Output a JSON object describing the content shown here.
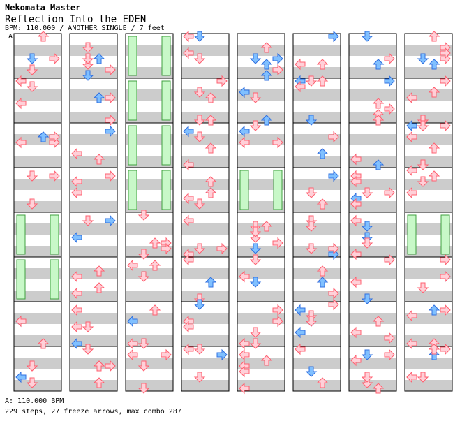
{
  "header": {
    "title": "Nekomata Master",
    "song": "Reflection Into the EDEN",
    "meta": "BPM: 110.000 / ANOTHER SINGLE / 7 feet",
    "marker": "A"
  },
  "footer": {
    "bpm_line": "A: 110.000 BPM",
    "stats_line": "229 steps, 27 freeze arrows, max combo 287"
  },
  "colors": {
    "stripe_gray": "#cccccc",
    "stripe_white": "#ffffff",
    "border": "#000000",
    "arrow_red_fill": "#ffd0d8",
    "arrow_red_stroke": "#ff6070",
    "arrow_blue_fill": "#80c0ff",
    "arrow_blue_stroke": "#3070e0",
    "freeze_fill": "#c8f8c8",
    "freeze_stroke": "#40a040"
  },
  "chart_data": {
    "type": "stepchart",
    "columns": 8,
    "measures_per_column": 8,
    "lanes": [
      "left",
      "down",
      "up",
      "right"
    ],
    "notes": [
      {
        "c": 0,
        "m": 0,
        "b": []
      },
      {
        "c": 1,
        "m": 0,
        "r": [
          [
            0,
            "L"
          ],
          [
            0,
            "R"
          ],
          [
            2,
            "R"
          ],
          [
            4,
            "D"
          ],
          [
            6,
            "L"
          ],
          [
            6,
            "R"
          ]
        ]
      },
      {
        "c": 2,
        "m": 0,
        "r": [
          [
            0,
            "F",
            0,
            6
          ],
          [
            0,
            "F",
            3,
            6
          ]
        ]
      },
      {
        "c": 3,
        "m": 0,
        "r": [
          [
            4,
            "D"
          ],
          [
            2,
            "R"
          ],
          [
            6,
            "R"
          ],
          [
            5,
            "U"
          ]
        ],
        "b": [
          [
            1,
            "D"
          ],
          [
            6,
            "U"
          ]
        ]
      },
      {
        "c": 4,
        "m": 0,
        "r": [
          [
            0,
            "L"
          ],
          [
            0,
            "R"
          ],
          [
            2,
            "L"
          ],
          [
            4,
            "D"
          ],
          [
            5,
            "U"
          ],
          [
            6,
            "R"
          ]
        ]
      },
      {
        "c": 5,
        "m": 0,
        "r": [
          [
            0,
            "D"
          ],
          [
            3,
            "R"
          ],
          [
            4,
            "D"
          ]
        ],
        "b": [
          [
            1,
            "U"
          ],
          [
            5,
            "L"
          ]
        ]
      },
      {
        "c": 6,
        "m": 0,
        "r": [
          [
            0,
            "L"
          ],
          [
            0,
            "R"
          ],
          [
            2,
            "L"
          ]
        ],
        "b": [
          [
            1,
            "D"
          ]
        ]
      },
      {
        "c": 7,
        "m": 0,
        "r": [
          [
            0,
            "D"
          ],
          [
            0,
            "R"
          ],
          [
            2,
            "R"
          ],
          [
            4,
            "L"
          ]
        ]
      }
    ]
  }
}
